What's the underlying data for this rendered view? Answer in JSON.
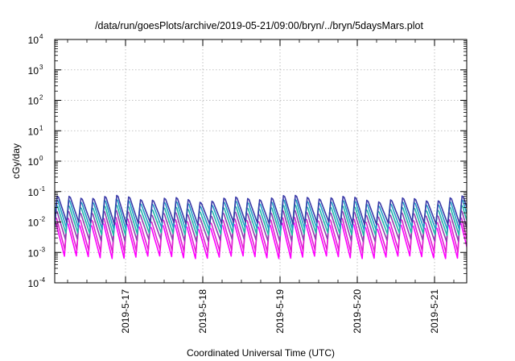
{
  "chart_data": {
    "type": "line",
    "title": "/data/run/goesPlots/archive/2019-05-21/09:00/bryn/../bryn/5daysMars.plot",
    "xlabel": "Coordinated Universal Time (UTC)",
    "ylabel": "cGy/day",
    "yscale": "log",
    "ylim": [
      0.0001,
      10000
    ],
    "xlim": [
      "2019-05-16T02:00",
      "2019-05-21T10:00"
    ],
    "grid": true,
    "y_ticks": [
      {
        "exp": "-4",
        "value": 0.0001
      },
      {
        "exp": "-3",
        "value": 0.001
      },
      {
        "exp": "-2",
        "value": 0.01
      },
      {
        "exp": "-1",
        "value": 0.1
      },
      {
        "exp": "0",
        "value": 1
      },
      {
        "exp": "1",
        "value": 10
      },
      {
        "exp": "2",
        "value": 100
      },
      {
        "exp": "3",
        "value": 1000
      },
      {
        "exp": "4",
        "value": 10000
      }
    ],
    "y_tick_base": "10",
    "x_ticks": [
      {
        "label": "2019-5-17",
        "value": "2019-05-17T00:00"
      },
      {
        "label": "2019-5-18",
        "value": "2019-05-18T00:00"
      },
      {
        "label": "2019-5-19",
        "value": "2019-05-19T00:00"
      },
      {
        "label": "2019-5-20",
        "value": "2019-05-20T00:00"
      },
      {
        "label": "2019-5-21",
        "value": "2019-05-21T00:00"
      }
    ],
    "oscillation_period_hours": 3.7,
    "series": [
      {
        "color": "#3a3aa8",
        "peak": 0.06,
        "trough": 0.009
      },
      {
        "color": "#20a0c8",
        "peak": 0.045,
        "trough": 0.006
      },
      {
        "color": "#22b8a8",
        "peak": 0.03,
        "trough": 0.004
      },
      {
        "color": "#9040b0",
        "peak": 0.02,
        "trough": 0.0025
      },
      {
        "color": "#e020d0",
        "peak": 0.012,
        "trough": 0.0011
      },
      {
        "color": "#ff00ff",
        "peak": 0.008,
        "trough": 0.0007
      }
    ]
  }
}
